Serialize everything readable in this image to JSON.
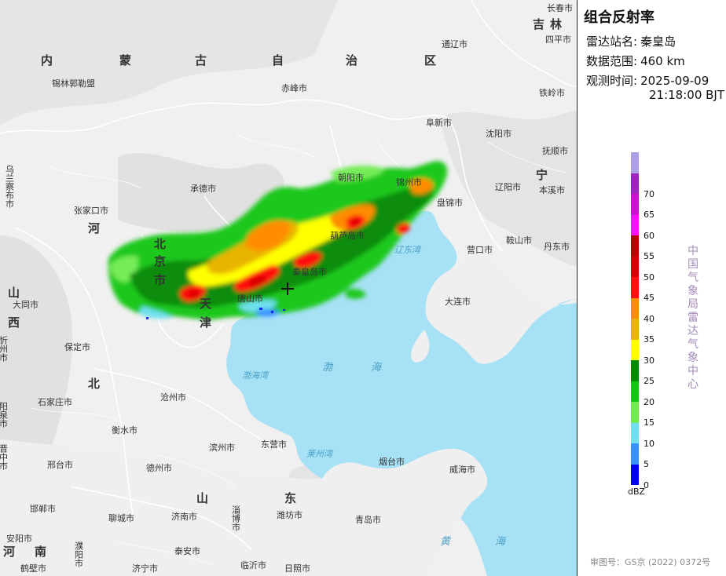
{
  "panel": {
    "title": "组合反射率",
    "station_label": "雷达站名:",
    "station_value": "秦皇岛",
    "range_label": "数据范围:",
    "range_value": "460 km",
    "time_label": "观测时间:",
    "time_date": "2025-09-09",
    "time_clock": "21:18:00 BJT",
    "unit": "dBZ",
    "vertical_text": "中国气象局雷达气象中心",
    "approval": "审图号：GS京 (2022) 0372号"
  },
  "legend": [
    {
      "label": "",
      "color": "#ae9ee6"
    },
    {
      "label": "70",
      "color": "#a020c0"
    },
    {
      "label": "65",
      "color": "#d010d0"
    },
    {
      "label": "60",
      "color": "#ff10ff"
    },
    {
      "label": "55",
      "color": "#b80000"
    },
    {
      "label": "50",
      "color": "#d80000"
    },
    {
      "label": "45",
      "color": "#ff1010"
    },
    {
      "label": "40",
      "color": "#ff8c00"
    },
    {
      "label": "35",
      "color": "#e8b400"
    },
    {
      "label": "30",
      "color": "#ffff00"
    },
    {
      "label": "25",
      "color": "#008c00"
    },
    {
      "label": "20",
      "color": "#10c810"
    },
    {
      "label": "15",
      "color": "#70ec50"
    },
    {
      "label": "10",
      "color": "#70e0f0"
    },
    {
      "label": "5",
      "color": "#3890ff"
    },
    {
      "label": "0",
      "color": "#0000f0"
    }
  ],
  "map": {
    "colors": {
      "land": "#f0f0f0",
      "sea": "#a6e1f5",
      "border": "#ffffff",
      "radar_site": "#111111"
    },
    "provinces": [
      "内",
      "蒙",
      "古",
      "自",
      "治",
      "区",
      "吉",
      "林",
      "宁",
      "北",
      "京",
      "市",
      "天",
      "津",
      "河",
      "北",
      "山",
      "西",
      "山",
      "东",
      "河",
      "南"
    ],
    "cities": [
      "长春市",
      "四平市",
      "通辽市",
      "铁岭市",
      "锡林郭勒盟",
      "赤峰市",
      "阜新市",
      "沈阳市",
      "抚顺市",
      "乌兰察布市",
      "承德市",
      "朝阳市",
      "锦州市",
      "辽阳市",
      "本溪市",
      "张家口市",
      "盘锦市",
      "葫芦岛市",
      "鞍山市",
      "营口市",
      "丹东市",
      "秦皇岛市",
      "唐山市",
      "大同市",
      "忻州市",
      "保定市",
      "大连市",
      "石家庄市",
      "沧州市",
      "阳泉市",
      "衡水市",
      "晋中市",
      "邢台市",
      "滨州市",
      "东营市",
      "烟台市",
      "威海市",
      "德州市",
      "淄博市",
      "邯郸市",
      "聊城市",
      "济南市",
      "潍坊市",
      "青岛市",
      "安阳市",
      "濮阳市",
      "泰安市",
      "鹤壁市",
      "济宁市",
      "临沂市",
      "日照市"
    ],
    "seas": [
      "渤",
      "海",
      "渤海湾",
      "辽东湾",
      "莱州湾",
      "黄",
      "海"
    ]
  }
}
